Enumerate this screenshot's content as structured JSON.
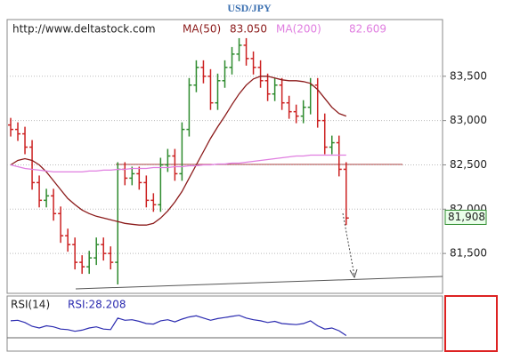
{
  "chart_data": [
    {
      "type": "ohlc",
      "title": "USD/JPY",
      "source": "http://www.deltastock.com",
      "indicators": [
        {
          "name": "MA(50)",
          "value_label": "83.050",
          "color": "#8b1a1a",
          "values": [
            82.5,
            82.55,
            82.57,
            82.55,
            82.5,
            82.42,
            82.32,
            82.22,
            82.12,
            82.05,
            81.99,
            81.95,
            81.92,
            81.9,
            81.88,
            81.86,
            81.84,
            81.83,
            81.82,
            81.82,
            81.84,
            81.9,
            81.98,
            82.08,
            82.2,
            82.35,
            82.5,
            82.65,
            82.8,
            82.93,
            83.05,
            83.18,
            83.3,
            83.4,
            83.47,
            83.5,
            83.5,
            83.48,
            83.46,
            83.45,
            83.45,
            83.44,
            83.42,
            83.35,
            83.25,
            83.15,
            83.08,
            83.05
          ]
        },
        {
          "name": "MA(200)",
          "value_label": "82.609",
          "color": "#e07ee0",
          "values": [
            82.5,
            82.48,
            82.46,
            82.45,
            82.44,
            82.43,
            82.42,
            82.42,
            82.42,
            82.42,
            82.42,
            82.43,
            82.43,
            82.44,
            82.44,
            82.45,
            82.45,
            82.46,
            82.46,
            82.46,
            82.47,
            82.47,
            82.47,
            82.48,
            82.48,
            82.49,
            82.49,
            82.5,
            82.5,
            82.51,
            82.51,
            82.52,
            82.52,
            82.53,
            82.54,
            82.55,
            82.56,
            82.57,
            82.58,
            82.59,
            82.6,
            82.6,
            82.61,
            82.61,
            82.61,
            82.61,
            82.61,
            82.61
          ]
        }
      ],
      "open": [
        82.95,
        82.9,
        82.85,
        82.7,
        82.3,
        82.1,
        82.15,
        81.95,
        81.7,
        81.6,
        81.4,
        81.35,
        81.45,
        81.6,
        81.5,
        81.4,
        82.45,
        82.35,
        82.4,
        82.3,
        82.1,
        82.05,
        82.5,
        82.6,
        82.4,
        82.9,
        83.4,
        83.6,
        83.5,
        83.2,
        83.45,
        83.6,
        83.75,
        83.85,
        83.7,
        83.6,
        83.45,
        83.3,
        83.4,
        83.2,
        83.1,
        83.05,
        83.15,
        83.4,
        83.0,
        82.7,
        82.75,
        82.45
      ],
      "high": [
        83.03,
        82.98,
        82.93,
        82.78,
        82.38,
        82.23,
        82.23,
        82.03,
        81.78,
        81.68,
        81.48,
        81.53,
        81.68,
        81.68,
        81.58,
        82.53,
        82.53,
        82.48,
        82.48,
        82.38,
        82.18,
        82.58,
        82.68,
        82.68,
        82.98,
        83.48,
        83.68,
        83.68,
        83.58,
        83.53,
        83.68,
        83.83,
        83.93,
        83.93,
        83.78,
        83.68,
        83.53,
        83.48,
        83.48,
        83.28,
        83.18,
        83.23,
        83.48,
        83.48,
        83.08,
        82.83,
        82.83,
        82.53
      ],
      "low": [
        82.82,
        82.77,
        82.62,
        82.22,
        82.02,
        82.02,
        81.87,
        81.62,
        81.52,
        81.32,
        81.27,
        81.27,
        81.37,
        81.42,
        81.32,
        81.15,
        82.27,
        82.27,
        82.22,
        82.02,
        81.97,
        81.97,
        82.42,
        82.32,
        82.32,
        82.82,
        83.32,
        83.42,
        83.12,
        83.12,
        83.37,
        83.52,
        83.67,
        83.62,
        83.52,
        83.37,
        83.22,
        83.22,
        83.12,
        83.02,
        82.97,
        82.97,
        83.07,
        82.92,
        82.62,
        82.62,
        82.37,
        81.82
      ],
      "close": [
        82.9,
        82.85,
        82.7,
        82.3,
        82.1,
        82.15,
        81.95,
        81.7,
        81.6,
        81.4,
        81.35,
        81.45,
        81.6,
        81.5,
        81.4,
        82.45,
        82.35,
        82.4,
        82.3,
        82.1,
        82.05,
        82.5,
        82.6,
        82.4,
        82.9,
        83.4,
        83.6,
        83.5,
        83.2,
        83.45,
        83.6,
        83.75,
        83.85,
        83.7,
        83.6,
        83.45,
        83.3,
        83.4,
        83.2,
        83.1,
        83.05,
        83.15,
        83.4,
        83.0,
        82.7,
        82.75,
        82.45,
        81.9
      ],
      "up_color": "#2e8b2e",
      "down_color": "#cc2222",
      "last": {
        "value": 81.908,
        "label": "81,908"
      },
      "xlim": [
        -0.5,
        60.5
      ],
      "ylim": [
        81.05,
        84.14
      ],
      "yticks": [
        {
          "value": 81.5,
          "label": "81,500"
        },
        {
          "value": 82,
          "label": "82,000"
        },
        {
          "value": 82.5,
          "label": "82,500"
        },
        {
          "value": 83,
          "label": "83,000"
        },
        {
          "value": 83.5,
          "label": "83,500"
        }
      ],
      "grid": true
    },
    {
      "type": "line",
      "name": "RSI(14)",
      "value_label": "RSI:28.208",
      "color": "#2b2bb0",
      "values": [
        55,
        56,
        52,
        45,
        42,
        46,
        44,
        40,
        39,
        36,
        38,
        42,
        44,
        40,
        39,
        60,
        56,
        57,
        54,
        50,
        49,
        55,
        57,
        53,
        58,
        62,
        64,
        60,
        56,
        59,
        61,
        63,
        65,
        60,
        57,
        55,
        52,
        54,
        50,
        49,
        48,
        50,
        55,
        46,
        40,
        42,
        37,
        28.208
      ],
      "xlim": [
        -0.5,
        60.5
      ],
      "ylim": [
        0,
        100
      ]
    }
  ]
}
